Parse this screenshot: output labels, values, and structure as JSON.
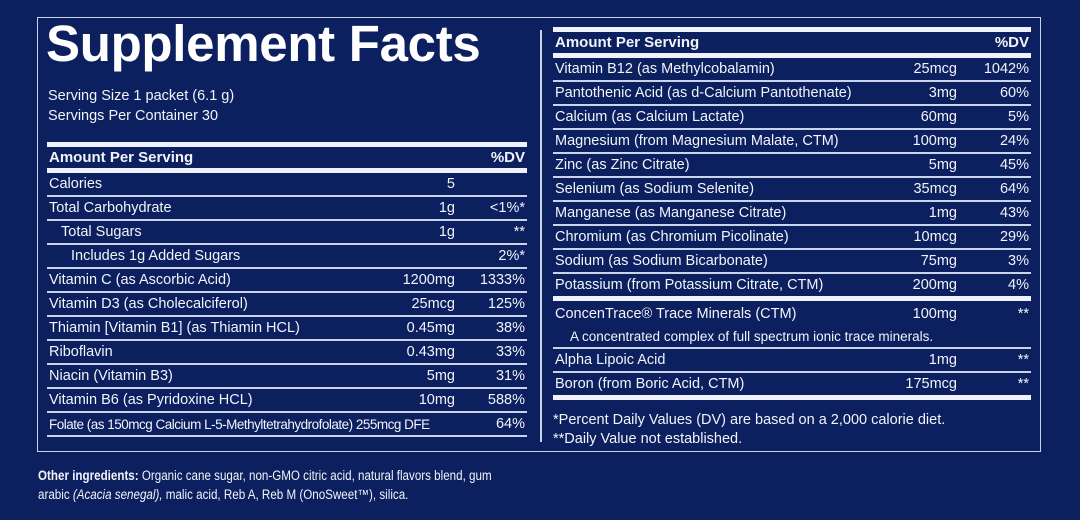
{
  "title": "Supplement Facts",
  "serving_size": "Serving Size 1 packet (6.1 g)",
  "servings_per_container": "Servings Per Container 30",
  "left_table": {
    "header_amount": "Amount Per Serving",
    "header_dv": "%DV",
    "rows": [
      {
        "name": "Calories",
        "amount": "5",
        "dv": "",
        "indent": 0
      },
      {
        "name": "Total Carbohydrate",
        "amount": "1g",
        "dv": "<1%*",
        "indent": 0
      },
      {
        "name": "Total Sugars",
        "amount": "1g",
        "dv": "**",
        "indent": 1
      },
      {
        "name": "Includes 1g Added Sugars",
        "amount": "",
        "dv": "2%*",
        "indent": 2
      },
      {
        "name": "Vitamin C (as Ascorbic Acid)",
        "amount": "1200mg",
        "dv": "1333%",
        "indent": 0
      },
      {
        "name": "Vitamin D3 (as Cholecalciferol)",
        "amount": "25mcg",
        "dv": "125%",
        "indent": 0
      },
      {
        "name": "Thiamin [Vitamin B1] (as Thiamin HCL)",
        "amount": "0.45mg",
        "dv": "38%",
        "indent": 0
      },
      {
        "name": "Riboflavin",
        "amount": "0.43mg",
        "dv": "33%",
        "indent": 0
      },
      {
        "name": "Niacin (Vitamin B3)",
        "amount": "5mg",
        "dv": "31%",
        "indent": 0
      },
      {
        "name": "Vitamin B6 (as Pyridoxine HCL)",
        "amount": "10mg",
        "dv": "588%",
        "indent": 0
      },
      {
        "name": "Folate (as 150mcg Calcium L-5-Methyltetrahydrofolate) 255mcg DFE",
        "amount": "",
        "dv": "64%",
        "indent": 0,
        "condensed": true
      }
    ]
  },
  "right_table": {
    "header_amount": "Amount Per Serving",
    "header_dv": "%DV",
    "rows": [
      {
        "name": "Vitamin B12 (as Methylcobalamin)",
        "amount": "25mcg",
        "dv": "1042%"
      },
      {
        "name": "Pantothenic Acid (as d-Calcium Pantothenate)",
        "amount": "3mg",
        "dv": "60%"
      },
      {
        "name": "Calcium (as Calcium Lactate)",
        "amount": "60mg",
        "dv": "5%"
      },
      {
        "name": "Magnesium (from Magnesium Malate, CTM)",
        "amount": "100mg",
        "dv": "24%"
      },
      {
        "name": "Zinc (as Zinc Citrate)",
        "amount": "5mg",
        "dv": "45%"
      },
      {
        "name": "Selenium (as Sodium Selenite)",
        "amount": "35mcg",
        "dv": "64%"
      },
      {
        "name": "Manganese (as Manganese Citrate)",
        "amount": "1mg",
        "dv": "43%"
      },
      {
        "name": "Chromium (as Chromium Picolinate)",
        "amount": "10mcg",
        "dv": "29%"
      },
      {
        "name": "Sodium (as Sodium Bicarbonate)",
        "amount": "75mg",
        "dv": "3%"
      },
      {
        "name": "Potassium (from Potassium Citrate, CTM)",
        "amount": "200mg",
        "dv": "4%"
      }
    ],
    "other_rows": [
      {
        "name": "ConcenTrace® Trace Minerals (CTM)",
        "amount": "100mg",
        "dv": "**",
        "description": "A concentrated complex of full spectrum ionic trace minerals."
      },
      {
        "name": "Alpha Lipoic Acid",
        "amount": "1mg",
        "dv": "**"
      },
      {
        "name": "Boron (from Boric Acid, CTM)",
        "amount": "175mcg",
        "dv": "**"
      }
    ]
  },
  "footnotes": {
    "dv_note": "*Percent Daily Values (DV) are based on a 2,000 calorie diet.",
    "not_established": "**Daily Value not established."
  },
  "other_ingredients": {
    "label": "Other ingredients:",
    "text_1": " Organic cane sugar, non-GMO citric acid, natural flavors blend, gum arabic ",
    "italic": "(Acacia senegal),",
    "text_2": "  malic acid, Reb A, Reb M (OnoSweet™), silica."
  },
  "colors": {
    "background": "#0c1f5e",
    "text": "#f2f4fa",
    "rule": "#c9d3ea"
  }
}
